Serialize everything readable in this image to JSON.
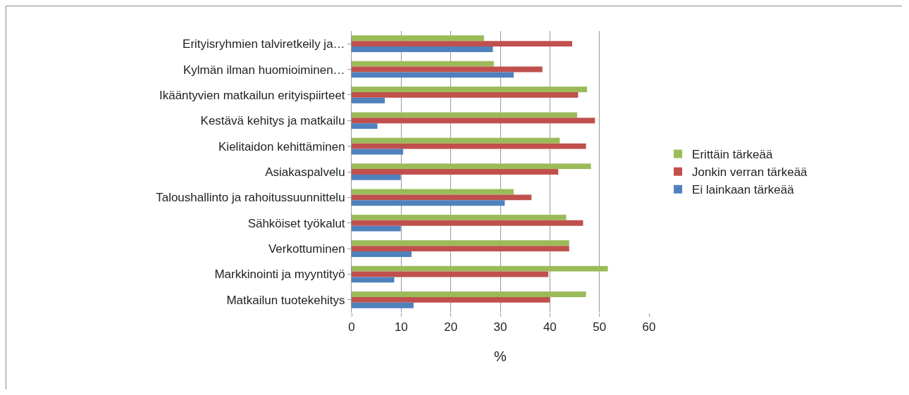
{
  "chart_data": {
    "type": "bar",
    "orientation": "horizontal",
    "xlabel": "%",
    "categories": [
      "Erityisryhmien talviretkeily ja…",
      "Kylmän ilman huomioiminen…",
      "Ikääntyvien matkailun erityispiirteet",
      "Kestävä kehitys ja matkailu",
      "Kielitaidon kehittäminen",
      "Asiakaspalvelu",
      "Taloushallinto ja rahoitussuunnittelu",
      "Sähköiset työkalut",
      "Verkottuminen",
      "Markkinointi ja myyntityö",
      "Matkailun tuotekehitys"
    ],
    "series": [
      {
        "name": "Erittäin tärkeää",
        "color": "#9bbb59",
        "values": [
          26.7,
          28.7,
          47.5,
          45.5,
          42.0,
          48.3,
          32.7,
          43.3,
          43.9,
          51.7,
          47.3
        ]
      },
      {
        "name": "Jonkin verran tärkeää",
        "color": "#c0504d",
        "values": [
          44.5,
          38.5,
          45.7,
          49.1,
          47.3,
          41.7,
          36.3,
          46.7,
          43.9,
          39.7,
          40.0
        ]
      },
      {
        "name": "Ei lainkaan tärkeää",
        "color": "#4f81bd",
        "values": [
          28.5,
          32.7,
          6.7,
          5.2,
          10.4,
          9.9,
          30.9,
          9.9,
          12.1,
          8.6,
          12.5
        ]
      }
    ],
    "xlim": [
      0,
      60
    ],
    "xticks": [
      0,
      10,
      20,
      30,
      40,
      50,
      60
    ],
    "grid": "x",
    "legend": "right"
  }
}
